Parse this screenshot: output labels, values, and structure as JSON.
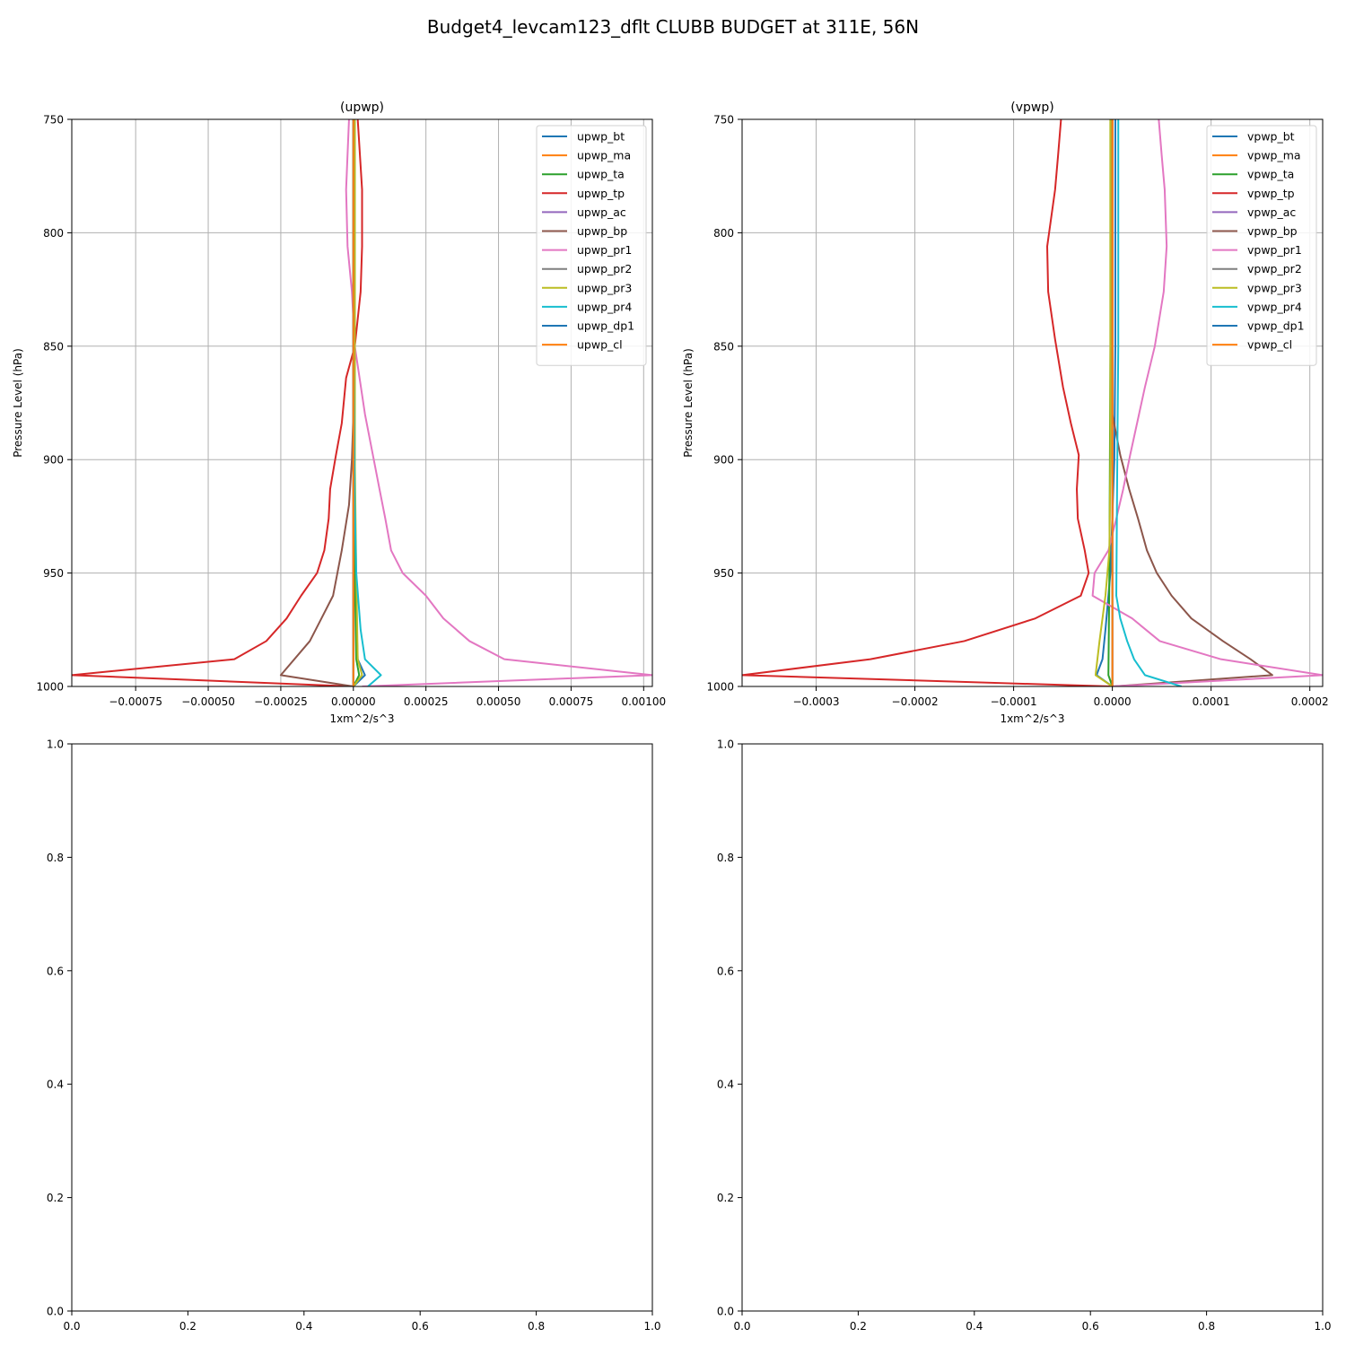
{
  "figure": {
    "suptitle": "Budget4_levcam123_dflt CLUBB BUDGET at 311E, 56N"
  },
  "colors": {
    "grid": "#b0b0b0",
    "axes": "#000000",
    "palette": [
      "#1f77b4",
      "#ff7f0e",
      "#2ca02c",
      "#d62728",
      "#9467bd",
      "#8c564b",
      "#e377c2",
      "#7f7f7f",
      "#bcbd22",
      "#17becf",
      "#1f77b4",
      "#ff7f0e"
    ]
  },
  "chart_data": [
    {
      "type": "line",
      "title": "(upwp)",
      "xlabel": "1xm^2/s^3",
      "ylabel": "Pressure Level (hPa)",
      "xlim": [
        -0.00097,
        0.00103
      ],
      "ylim": [
        1000,
        750
      ],
      "y_inverted": true,
      "grid": true,
      "legend_position": "upper right",
      "xticks": [
        -0.00075,
        -0.0005,
        -0.00025,
        0.0,
        0.00025,
        0.0005,
        0.00075,
        0.001
      ],
      "xtick_labels": [
        "−0.00075",
        "−0.00050",
        "−0.00025",
        "0.00000",
        "0.00025",
        "0.00050",
        "0.00075",
        "0.00100"
      ],
      "yticks": [
        750,
        800,
        850,
        900,
        950,
        1000
      ],
      "ytick_labels": [
        "750",
        "800",
        "850",
        "900",
        "950",
        "1000"
      ],
      "series": [
        {
          "name": "upwp_bt",
          "points": [
            [
              0.0,
              750
            ],
            [
              0.0,
              850
            ],
            [
              0.0,
              900
            ],
            [
              5e-06,
              950
            ],
            [
              1.5e-05,
              988
            ],
            [
              4e-05,
              995
            ],
            [
              0.0,
              1000
            ]
          ]
        },
        {
          "name": "upwp_ma",
          "points": [
            [
              0.0,
              750
            ],
            [
              0.0,
              900
            ],
            [
              0.0,
              1000
            ]
          ]
        },
        {
          "name": "upwp_ta",
          "points": [
            [
              5e-06,
              750
            ],
            [
              5e-06,
              850
            ],
            [
              5e-06,
              950
            ],
            [
              1e-05,
              988
            ],
            [
              2e-05,
              995
            ],
            [
              0.0,
              1000
            ]
          ]
        },
        {
          "name": "upwp_tp",
          "points": [
            [
              1.5e-05,
              750
            ],
            [
              3e-05,
              781
            ],
            [
              3e-05,
              806
            ],
            [
              2.5e-05,
              826
            ],
            [
              5e-06,
              850
            ],
            [
              -2.5e-05,
              864
            ],
            [
              -4e-05,
              884
            ],
            [
              -6e-05,
              898
            ],
            [
              -8e-05,
              913
            ],
            [
              -8.5e-05,
              926
            ],
            [
              -0.0001,
              940
            ],
            [
              -0.000125,
              950
            ],
            [
              -0.00018,
              960
            ],
            [
              -0.00023,
              970
            ],
            [
              -0.0003,
              980
            ],
            [
              -0.00041,
              988
            ],
            [
              -0.00097,
              995
            ],
            [
              0.0,
              1000
            ]
          ]
        },
        {
          "name": "upwp_ac",
          "points": [
            [
              0.0,
              750
            ],
            [
              0.0,
              900
            ],
            [
              0.0,
              1000
            ]
          ]
        },
        {
          "name": "upwp_bp",
          "points": [
            [
              0.0,
              750
            ],
            [
              0.0,
              880
            ],
            [
              -5e-06,
              900
            ],
            [
              -1.5e-05,
              920
            ],
            [
              -4e-05,
              940
            ],
            [
              -7e-05,
              960
            ],
            [
              -0.00011,
              970
            ],
            [
              -0.00015,
              980
            ],
            [
              -0.00025,
              995
            ],
            [
              0.0,
              1000
            ]
          ]
        },
        {
          "name": "upwp_pr1",
          "points": [
            [
              -1.5e-05,
              750
            ],
            [
              -2.5e-05,
              781
            ],
            [
              -2e-05,
              806
            ],
            [
              -5e-06,
              826
            ],
            [
              5e-06,
              850
            ],
            [
              4e-05,
              880
            ],
            [
              9e-05,
              913
            ],
            [
              0.00011,
              926
            ],
            [
              0.00013,
              940
            ],
            [
              0.00017,
              950
            ],
            [
              0.00025,
              960
            ],
            [
              0.00031,
              970
            ],
            [
              0.0004,
              980
            ],
            [
              0.00052,
              988
            ],
            [
              0.00103,
              995
            ],
            [
              3e-05,
              1000
            ]
          ]
        },
        {
          "name": "upwp_pr2",
          "points": [
            [
              0.0,
              750
            ],
            [
              0.0,
              900
            ],
            [
              0.0,
              1000
            ]
          ]
        },
        {
          "name": "upwp_pr3",
          "points": [
            [
              5e-06,
              750
            ],
            [
              5e-06,
              900
            ],
            [
              1e-05,
              950
            ],
            [
              1.5e-05,
              988
            ],
            [
              3e-05,
              995
            ],
            [
              0.0,
              1000
            ]
          ]
        },
        {
          "name": "upwp_pr4",
          "points": [
            [
              0.0,
              750
            ],
            [
              0.0,
              850
            ],
            [
              5e-06,
              920
            ],
            [
              1e-05,
              950
            ],
            [
              2.5e-05,
              975
            ],
            [
              4e-05,
              988
            ],
            [
              9.5e-05,
              995
            ],
            [
              5e-05,
              1000
            ]
          ]
        },
        {
          "name": "upwp_dp1",
          "points": [
            [
              0.0,
              750
            ],
            [
              0.0,
              900
            ],
            [
              0.0,
              1000
            ]
          ]
        },
        {
          "name": "upwp_cl",
          "points": [
            [
              0.0,
              750
            ],
            [
              0.0,
              900
            ],
            [
              0.0,
              1000
            ]
          ]
        }
      ]
    },
    {
      "type": "line",
      "title": "(vpwp)",
      "xlabel": "1xm^2/s^3",
      "ylabel": "Pressure Level (hPa)",
      "xlim": [
        -0.000375,
        0.000213
      ],
      "ylim": [
        1000,
        750
      ],
      "y_inverted": true,
      "grid": true,
      "legend_position": "upper right",
      "xticks": [
        -0.0003,
        -0.0002,
        -0.0001,
        0.0,
        0.0001,
        0.0002
      ],
      "xtick_labels": [
        "−0.0003",
        "−0.0002",
        "−0.0001",
        "0.0000",
        "0.0001",
        "0.0002"
      ],
      "yticks": [
        750,
        800,
        850,
        900,
        950,
        1000
      ],
      "ytick_labels": [
        "750",
        "800",
        "850",
        "900",
        "950",
        "1000"
      ],
      "series": [
        {
          "name": "vpwp_bt",
          "points": [
            [
              3e-06,
              750
            ],
            [
              3e-06,
              850
            ],
            [
              2e-06,
              900
            ],
            [
              -2e-06,
              950
            ],
            [
              -7e-06,
              975
            ],
            [
              -1e-05,
              988
            ],
            [
              -1.6e-05,
              995
            ],
            [
              0.0,
              1000
            ]
          ]
        },
        {
          "name": "vpwp_ma",
          "points": [
            [
              0.0,
              750
            ],
            [
              0.0,
              900
            ],
            [
              0.0,
              1000
            ]
          ]
        },
        {
          "name": "vpwp_ta",
          "points": [
            [
              -2e-06,
              750
            ],
            [
              -2e-06,
              850
            ],
            [
              -3e-06,
              950
            ],
            [
              -4e-06,
              995
            ],
            [
              0.0,
              1000
            ]
          ]
        },
        {
          "name": "vpwp_tp",
          "points": [
            [
              -5.2e-05,
              750
            ],
            [
              -5.5e-05,
              766
            ],
            [
              -5.8e-05,
              781
            ],
            [
              -6.6e-05,
              806
            ],
            [
              -6.5e-05,
              826
            ],
            [
              -5.8e-05,
              847
            ],
            [
              -5e-05,
              868
            ],
            [
              -4.2e-05,
              884
            ],
            [
              -3.4e-05,
              898
            ],
            [
              -3.6e-05,
              913
            ],
            [
              -3.5e-05,
              926
            ],
            [
              -2.8e-05,
              940
            ],
            [
              -2.4e-05,
              950
            ],
            [
              -3.2e-05,
              960
            ],
            [
              -7.8e-05,
              970
            ],
            [
              -0.00015,
              980
            ],
            [
              -0.000245,
              988
            ],
            [
              -0.000375,
              995
            ],
            [
              0.0,
              1000
            ]
          ]
        },
        {
          "name": "vpwp_ac",
          "points": [
            [
              0.0,
              750
            ],
            [
              0.0,
              900
            ],
            [
              0.0,
              1000
            ]
          ]
        },
        {
          "name": "vpwp_bp",
          "points": [
            [
              0.0,
              750
            ],
            [
              0.0,
              880
            ],
            [
              8e-06,
              898
            ],
            [
              1.7e-05,
              913
            ],
            [
              2.6e-05,
              926
            ],
            [
              3.5e-05,
              940
            ],
            [
              4.5e-05,
              950
            ],
            [
              6e-05,
              960
            ],
            [
              8e-05,
              970
            ],
            [
              0.000112,
              980
            ],
            [
              0.00014,
              988
            ],
            [
              0.000162,
              995
            ],
            [
              0.0,
              1000
            ]
          ]
        },
        {
          "name": "vpwp_pr1",
          "points": [
            [
              4.7e-05,
              750
            ],
            [
              5e-05,
              766
            ],
            [
              5.3e-05,
              781
            ],
            [
              5.5e-05,
              806
            ],
            [
              5.2e-05,
              826
            ],
            [
              4.3e-05,
              850
            ],
            [
              3.3e-05,
              868
            ],
            [
              2.5e-05,
              884
            ],
            [
              1.8e-05,
              898
            ],
            [
              1.1e-05,
              913
            ],
            [
              4e-06,
              926
            ],
            [
              -4e-06,
              940
            ],
            [
              -1.8e-05,
              950
            ],
            [
              -2e-05,
              960
            ],
            [
              2e-05,
              970
            ],
            [
              4.8e-05,
              980
            ],
            [
              0.00011,
              988
            ],
            [
              0.000213,
              995
            ],
            [
              0.0,
              1000
            ]
          ]
        },
        {
          "name": "vpwp_pr2",
          "points": [
            [
              0.0,
              750
            ],
            [
              0.0,
              900
            ],
            [
              0.0,
              1000
            ]
          ]
        },
        {
          "name": "vpwp_pr3",
          "points": [
            [
              -2e-06,
              750
            ],
            [
              -2e-06,
              850
            ],
            [
              -2e-06,
              900
            ],
            [
              -3e-06,
              940
            ],
            [
              -7e-06,
              960
            ],
            [
              -1.3e-05,
              980
            ],
            [
              -1.7e-05,
              995
            ],
            [
              0.0,
              1000
            ]
          ]
        },
        {
          "name": "vpwp_pr4",
          "points": [
            [
              6e-06,
              750
            ],
            [
              6e-06,
              850
            ],
            [
              5e-06,
              900
            ],
            [
              4e-06,
              960
            ],
            [
              8e-06,
              970
            ],
            [
              1.5e-05,
              980
            ],
            [
              2.2e-05,
              988
            ],
            [
              3.3e-05,
              995
            ],
            [
              7e-05,
              1000
            ]
          ]
        },
        {
          "name": "vpwp_dp1",
          "points": [
            [
              0.0,
              750
            ],
            [
              0.0,
              900
            ],
            [
              0.0,
              1000
            ]
          ]
        },
        {
          "name": "vpwp_cl",
          "points": [
            [
              0.0,
              750
            ],
            [
              0.0,
              900
            ],
            [
              0.0,
              1000
            ]
          ]
        }
      ]
    },
    {
      "type": "line",
      "title": "",
      "xlim": [
        0.0,
        1.0
      ],
      "ylim": [
        0.0,
        1.0
      ],
      "xticks": [
        0.0,
        0.2,
        0.4,
        0.6,
        0.8,
        1.0
      ],
      "xtick_labels": [
        "0.0",
        "0.2",
        "0.4",
        "0.6",
        "0.8",
        "1.0"
      ],
      "yticks": [
        0.0,
        0.2,
        0.4,
        0.6,
        0.8,
        1.0
      ],
      "ytick_labels": [
        "0.0",
        "0.2",
        "0.4",
        "0.6",
        "0.8",
        "1.0"
      ],
      "grid": false,
      "series": []
    },
    {
      "type": "line",
      "title": "",
      "xlim": [
        0.0,
        1.0
      ],
      "ylim": [
        0.0,
        1.0
      ],
      "xticks": [
        0.0,
        0.2,
        0.4,
        0.6,
        0.8,
        1.0
      ],
      "xtick_labels": [
        "0.0",
        "0.2",
        "0.4",
        "0.6",
        "0.8",
        "1.0"
      ],
      "yticks": [
        0.0,
        0.2,
        0.4,
        0.6,
        0.8,
        1.0
      ],
      "ytick_labels": [
        "0.0",
        "0.2",
        "0.4",
        "0.6",
        "0.8",
        "1.0"
      ],
      "grid": false,
      "series": []
    }
  ]
}
